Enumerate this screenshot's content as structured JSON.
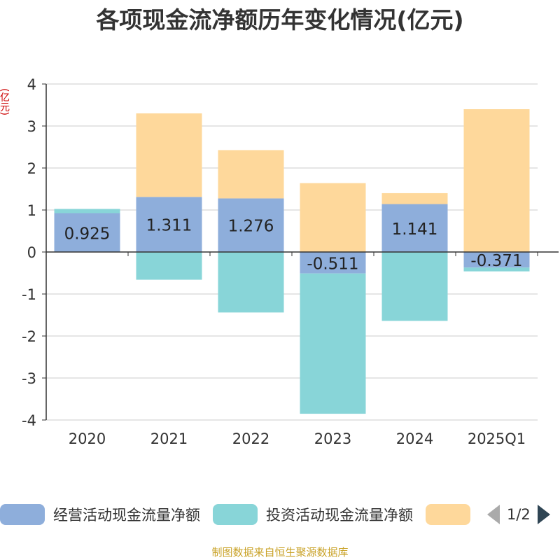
{
  "chart_data": {
    "type": "bar",
    "stacked": true,
    "title": "各项现金流净额历年变化情况(亿元)",
    "ylabel": "(亿元)",
    "categories": [
      "2020",
      "2021",
      "2022",
      "2023",
      "2024",
      "2025Q1"
    ],
    "ylim": [
      -4,
      4
    ],
    "yticks": [
      4,
      3,
      2,
      1,
      0,
      -1,
      -2,
      -3,
      -4
    ],
    "grid": true,
    "legend_position": "bottom",
    "series": [
      {
        "name": "经营活动现金流量净额",
        "color": "#8eaedb",
        "values": [
          0.925,
          1.311,
          1.276,
          -0.511,
          1.141,
          -0.371
        ],
        "labels": [
          "0.925",
          "1.311",
          "1.276",
          "-0.511",
          "1.141",
          "-0.371"
        ]
      },
      {
        "name": "投资活动现金流量净额",
        "color": "#88d5d8",
        "values": [
          0.1,
          -0.66,
          -1.44,
          -3.34,
          -1.64,
          -0.09
        ]
      },
      {
        "name": "",
        "color": "#fed89b",
        "values": [
          0.0,
          1.99,
          1.15,
          1.64,
          0.26,
          3.4
        ]
      }
    ]
  },
  "legend": {
    "items": [
      "经营活动现金流量净额",
      "投资活动现金流量净额",
      ""
    ],
    "page": "1/2"
  },
  "source": "制图数据来自恒生聚源数据库"
}
